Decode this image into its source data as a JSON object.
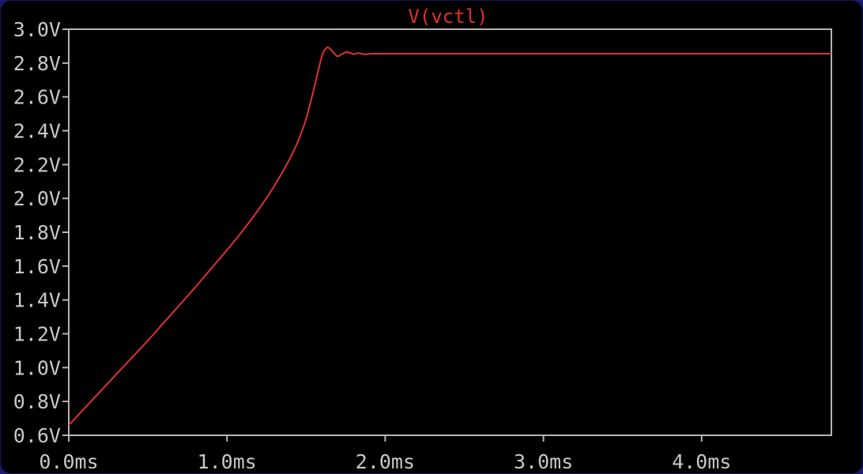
{
  "chart_data": {
    "type": "line",
    "title": "V(vctl)",
    "xlabel": "",
    "ylabel": "",
    "xlim": [
      0.0,
      4.82
    ],
    "ylim": [
      0.6,
      3.0
    ],
    "x_ticks": [
      {
        "value": 0.0,
        "label": "0.0ms"
      },
      {
        "value": 1.0,
        "label": "1.0ms"
      },
      {
        "value": 2.0,
        "label": "2.0ms"
      },
      {
        "value": 3.0,
        "label": "3.0ms"
      },
      {
        "value": 4.0,
        "label": "4.0ms"
      }
    ],
    "y_ticks": [
      {
        "value": 3.0,
        "label": "3.0V"
      },
      {
        "value": 2.8,
        "label": "2.8V"
      },
      {
        "value": 2.6,
        "label": "2.6V"
      },
      {
        "value": 2.4,
        "label": "2.4V"
      },
      {
        "value": 2.2,
        "label": "2.2V"
      },
      {
        "value": 2.0,
        "label": "2.0V"
      },
      {
        "value": 1.8,
        "label": "1.8V"
      },
      {
        "value": 1.6,
        "label": "1.6V"
      },
      {
        "value": 1.4,
        "label": "1.4V"
      },
      {
        "value": 1.2,
        "label": "1.2V"
      },
      {
        "value": 1.0,
        "label": "1.0V"
      },
      {
        "value": 0.8,
        "label": "0.8V"
      },
      {
        "value": 0.6,
        "label": "0.6V"
      }
    ],
    "grid": false,
    "series": [
      {
        "name": "V(vctl)",
        "color": "#e03030",
        "x": [
          0.0,
          0.1,
          0.2,
          0.3,
          0.4,
          0.5,
          0.6,
          0.7,
          0.8,
          0.9,
          1.0,
          1.1,
          1.2,
          1.3,
          1.4,
          1.45,
          1.5,
          1.55,
          1.6,
          1.63,
          1.65,
          1.68,
          1.7,
          1.73,
          1.76,
          1.8,
          1.83,
          1.87,
          1.92,
          2.0,
          2.5,
          3.0,
          3.5,
          4.0,
          4.5,
          4.82
        ],
        "y": [
          0.66,
          0.76,
          0.86,
          0.96,
          1.06,
          1.16,
          1.265,
          1.37,
          1.475,
          1.585,
          1.695,
          1.81,
          1.935,
          2.075,
          2.24,
          2.34,
          2.47,
          2.65,
          2.84,
          2.89,
          2.885,
          2.855,
          2.84,
          2.855,
          2.865,
          2.853,
          2.858,
          2.852,
          2.855,
          2.855,
          2.855,
          2.855,
          2.855,
          2.855,
          2.855,
          2.855
        ]
      }
    ],
    "colors": {
      "background": "#000000",
      "frame": "#b4b4b4",
      "tick_label": "#c8c8c8",
      "title": "#e03030"
    }
  }
}
